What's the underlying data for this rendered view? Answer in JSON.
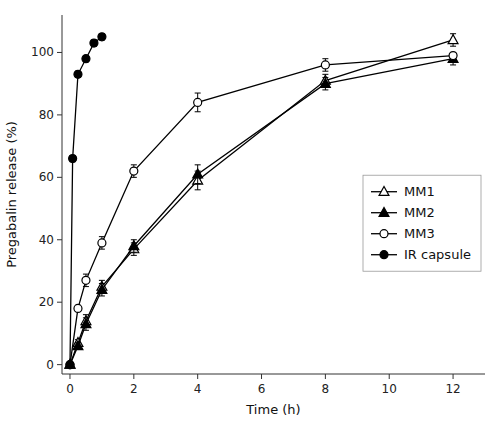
{
  "chart_data": {
    "type": "line",
    "xlabel": "Time (h)",
    "ylabel": "Pregabalin release (%)",
    "xlim": [
      -0.25,
      13.0
    ],
    "ylim": [
      -3,
      112
    ],
    "xticks": [
      0,
      2,
      4,
      6,
      8,
      10,
      12
    ],
    "yticks": [
      0,
      20,
      40,
      60,
      80,
      100
    ],
    "grid": false,
    "legend": "right",
    "series": [
      {
        "name": "MM1",
        "color": "black",
        "marker": "triangle-open",
        "line_style": "solid",
        "x": [
          0,
          0.25,
          0.5,
          1.0,
          2.0,
          4.0,
          8.0,
          12.0
        ],
        "values": [
          0,
          7,
          14,
          25,
          37,
          59,
          91,
          104
        ],
        "errors": [
          0,
          1,
          2,
          2,
          2,
          3,
          2,
          2
        ]
      },
      {
        "name": "MM2",
        "color": "black",
        "marker": "triangle-filled",
        "line_style": "solid",
        "x": [
          0,
          0.25,
          0.5,
          1.0,
          2.0,
          4.0,
          8.0,
          12.0
        ],
        "values": [
          0,
          6,
          13,
          24,
          38,
          61,
          90,
          98
        ],
        "errors": [
          0,
          1,
          2,
          2,
          2,
          3,
          2,
          2
        ]
      },
      {
        "name": "MM3",
        "color": "black",
        "marker": "circle-open",
        "line_style": "solid",
        "x": [
          0,
          0.25,
          0.5,
          1.0,
          2.0,
          4.0,
          8.0,
          12.0
        ],
        "values": [
          0,
          18,
          27,
          39,
          62,
          84,
          96,
          99
        ],
        "errors": [
          0,
          1,
          2,
          2,
          2,
          3,
          2,
          1
        ]
      },
      {
        "name": "IR capsule",
        "color": "black",
        "marker": "circle-filled",
        "line_style": "solid",
        "x": [
          0,
          0.083,
          0.25,
          0.5,
          0.75,
          1.0
        ],
        "values": [
          0,
          66,
          93,
          98,
          103,
          105
        ],
        "errors": [
          0,
          1,
          1,
          1,
          1,
          1
        ]
      }
    ]
  }
}
